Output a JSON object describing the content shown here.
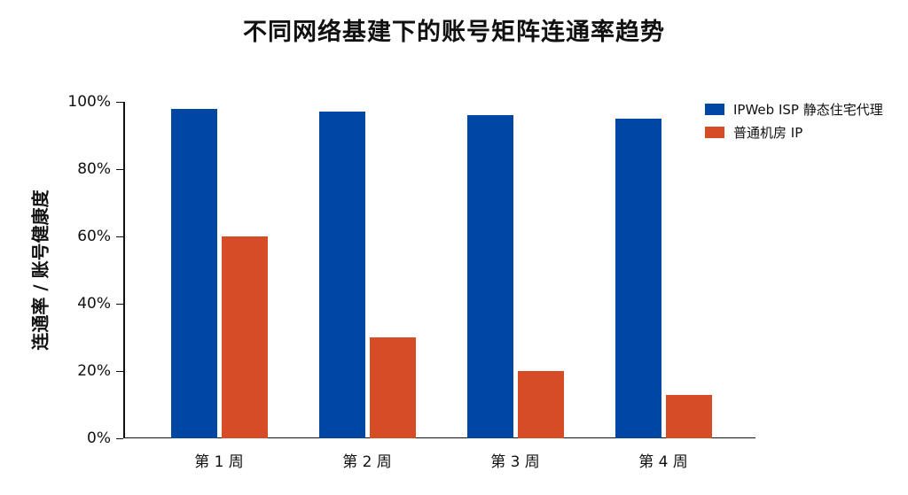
{
  "title": "不同网络基建下的账号矩阵连通率趋势",
  "colors": {
    "series1": "#0047A3",
    "series2": "#D64C27"
  },
  "legend": [
    {
      "label": "IPWeb ISP 静态住宅代理",
      "color": "#0047A3"
    },
    {
      "label": "普通机房 IP",
      "color": "#D64C27"
    }
  ],
  "chart_data": {
    "type": "bar",
    "title": "不同网络基建下的账号矩阵连通率趋势",
    "xlabel": "",
    "ylabel": "连通率 / 账号健康度",
    "categories": [
      "第 1 周",
      "第 2 周",
      "第 3 周",
      "第 4 周"
    ],
    "series": [
      {
        "name": "IPWeb ISP 静态住宅代理",
        "values": [
          98,
          97,
          96,
          95
        ]
      },
      {
        "name": "普通机房 IP",
        "values": [
          60,
          30,
          20,
          13
        ]
      }
    ],
    "ylim": [
      0,
      100
    ],
    "yticks": [
      "0%",
      "20%",
      "40%",
      "60%",
      "80%",
      "100%"
    ],
    "grid": false,
    "legend_position": "top-right"
  }
}
